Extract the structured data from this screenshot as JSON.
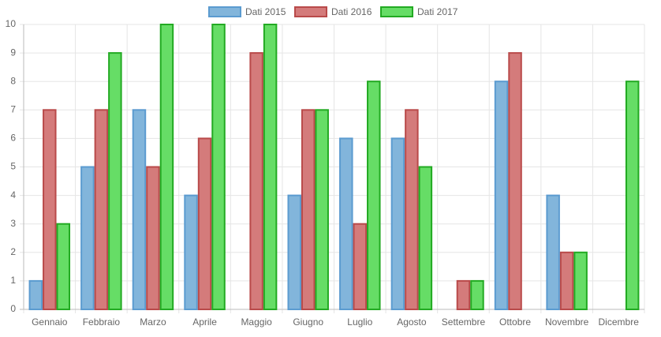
{
  "chart_data": {
    "type": "bar",
    "categories": [
      "Gennaio",
      "Febbraio",
      "Marzo",
      "Aprile",
      "Maggio",
      "Giugno",
      "Luglio",
      "Agosto",
      "Settembre",
      "Ottobre",
      "Novembre",
      "Dicembre"
    ],
    "series": [
      {
        "name": "Dati 2015",
        "color": "#82b5db",
        "border_color": "#5b9bd0",
        "values": [
          1,
          5,
          7,
          4,
          0,
          4,
          6,
          6,
          0,
          8,
          4,
          0
        ]
      },
      {
        "name": "Dati 2016",
        "color": "#d47b7b",
        "border_color": "#b94a4a",
        "values": [
          7,
          7,
          5,
          6,
          9,
          7,
          3,
          7,
          1,
          9,
          2,
          0
        ]
      },
      {
        "name": "Dati 2017",
        "color": "#66dd66",
        "border_color": "#22aa22",
        "values": [
          3,
          9,
          10,
          10,
          10,
          7,
          8,
          5,
          1,
          0,
          2,
          8
        ]
      }
    ],
    "ylim": [
      0,
      10
    ],
    "yticks": [
      0,
      1,
      2,
      3,
      4,
      5,
      6,
      7,
      8,
      9,
      10
    ],
    "grid": true,
    "legend": "top"
  }
}
